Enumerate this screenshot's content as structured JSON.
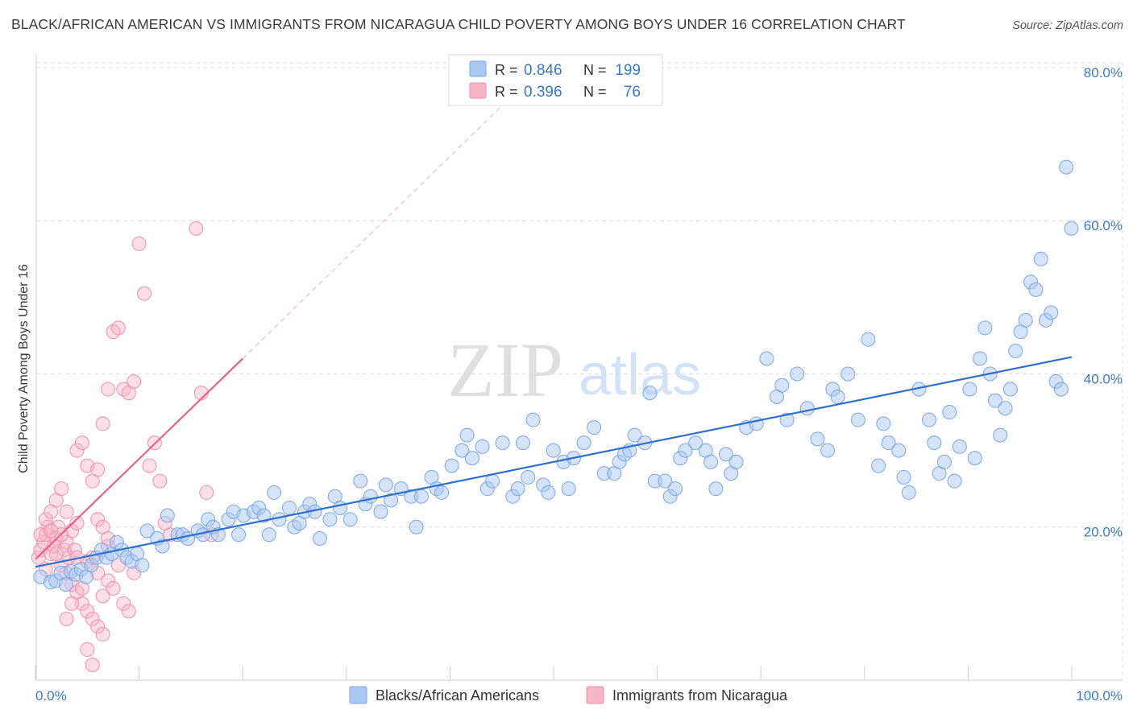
{
  "title": "BLACK/AFRICAN AMERICAN VS IMMIGRANTS FROM NICARAGUA CHILD POVERTY AMONG BOYS UNDER 16 CORRELATION CHART",
  "source": "Source: ZipAtlas.com",
  "watermark": {
    "zip": "ZIP",
    "atlas": "atlas"
  },
  "colors": {
    "blue_fill": "#a9c8f0",
    "blue_stroke": "#7aa7e0",
    "blue_line": "#2f6fcf",
    "pink_fill": "#f7b5c8",
    "pink_stroke": "#ef8fae",
    "pink_line": "#e8608e",
    "grid": "#dddddd",
    "tick_text": "#3a78c9"
  },
  "legend": {
    "rows": [
      {
        "r_label": "R =",
        "r_value": "0.846",
        "n_label": "N =",
        "n_value": "199"
      },
      {
        "r_label": "R =",
        "r_value": "0.396",
        "n_label": "N =",
        "n_value": "76"
      }
    ]
  },
  "chart_data": {
    "type": "scatter",
    "title": "BLACK/AFRICAN AMERICAN VS IMMIGRANTS FROM NICARAGUA CHILD POVERTY AMONG BOYS UNDER 16 CORRELATION CHART",
    "xlabel": "",
    "ylabel": "Child Poverty Among Boys Under 16",
    "xlim": [
      0,
      100
    ],
    "ylim": [
      0,
      80
    ],
    "y_ticks": [
      20,
      40,
      60,
      80
    ],
    "y_tick_labels": [
      "20.0%",
      "40.0%",
      "60.0%",
      "80.0%"
    ],
    "x_tick_labels": [
      "0.0%",
      "100.0%"
    ],
    "legend_position": "bottom-center",
    "series": [
      {
        "name": "Blacks/African Americans",
        "color": "#a9c8f0",
        "R": 0.846,
        "N": 199,
        "trend": {
          "x": [
            0,
            100
          ],
          "y": [
            14.8,
            42.2
          ]
        },
        "points": [
          [
            0.5,
            13.5
          ],
          [
            1.5,
            12.8
          ],
          [
            2,
            13
          ],
          [
            2.5,
            14
          ],
          [
            3,
            12.5
          ],
          [
            3.5,
            14.2
          ],
          [
            4,
            13.8
          ],
          [
            4.5,
            14.5
          ],
          [
            5,
            13.5
          ],
          [
            5.5,
            15
          ],
          [
            6,
            16
          ],
          [
            6.5,
            17
          ],
          [
            7,
            16
          ],
          [
            7.5,
            16.5
          ],
          [
            8,
            18
          ],
          [
            8.5,
            17
          ],
          [
            9,
            16
          ],
          [
            9.5,
            15.5
          ],
          [
            10,
            16.5
          ],
          [
            10.5,
            15
          ],
          [
            11,
            19.5
          ],
          [
            12,
            18.5
          ],
          [
            12.5,
            17.5
          ],
          [
            13,
            21.5
          ],
          [
            14,
            19
          ],
          [
            14.5,
            19
          ],
          [
            15,
            18.5
          ],
          [
            16,
            19.5
          ],
          [
            16.5,
            19
          ],
          [
            17,
            21
          ],
          [
            17.5,
            20
          ],
          [
            18,
            19
          ],
          [
            19,
            21
          ],
          [
            19.5,
            22
          ],
          [
            20,
            19
          ],
          [
            20.5,
            21.5
          ],
          [
            21.5,
            22
          ],
          [
            22,
            22.5
          ],
          [
            22.5,
            21.5
          ],
          [
            23,
            19
          ],
          [
            23.5,
            24.5
          ],
          [
            24,
            21
          ],
          [
            25,
            22.5
          ],
          [
            25.5,
            20
          ],
          [
            26,
            20.5
          ],
          [
            26.5,
            22
          ],
          [
            27,
            23
          ],
          [
            27.5,
            22
          ],
          [
            28,
            18.5
          ],
          [
            29,
            21
          ],
          [
            29.5,
            24
          ],
          [
            30,
            22.5
          ],
          [
            31,
            21
          ],
          [
            32,
            26
          ],
          [
            32.5,
            23
          ],
          [
            33,
            24
          ],
          [
            34,
            22
          ],
          [
            34.5,
            25.5
          ],
          [
            35,
            23.5
          ],
          [
            36,
            25
          ],
          [
            37,
            24
          ],
          [
            37.5,
            20
          ],
          [
            38,
            24
          ],
          [
            39,
            26.5
          ],
          [
            39.5,
            25
          ],
          [
            40,
            24.5
          ],
          [
            41,
            28
          ],
          [
            42,
            30
          ],
          [
            42.5,
            32
          ],
          [
            43,
            29
          ],
          [
            44,
            30.5
          ],
          [
            44.5,
            25
          ],
          [
            45,
            26
          ],
          [
            46,
            31
          ],
          [
            47,
            24
          ],
          [
            47.5,
            25
          ],
          [
            48,
            31
          ],
          [
            48.5,
            26.5
          ],
          [
            49,
            34
          ],
          [
            50,
            25.5
          ],
          [
            50.5,
            24.5
          ],
          [
            51,
            30
          ],
          [
            52,
            28.5
          ],
          [
            52.5,
            25
          ],
          [
            53,
            29
          ],
          [
            54,
            31
          ],
          [
            55,
            33
          ],
          [
            56,
            27
          ],
          [
            57,
            27
          ],
          [
            57.5,
            28.5
          ],
          [
            58,
            29.5
          ],
          [
            58.5,
            30
          ],
          [
            59,
            32
          ],
          [
            60,
            31
          ],
          [
            60.5,
            37.5
          ],
          [
            61,
            26
          ],
          [
            62,
            26
          ],
          [
            62.5,
            24
          ],
          [
            63,
            25
          ],
          [
            63.5,
            29
          ],
          [
            64,
            30
          ],
          [
            65,
            31
          ],
          [
            66,
            30
          ],
          [
            66.5,
            28.5
          ],
          [
            67,
            25
          ],
          [
            68,
            29.5
          ],
          [
            68.5,
            27
          ],
          [
            69,
            28.5
          ],
          [
            70,
            33
          ],
          [
            71,
            33.5
          ],
          [
            72,
            42
          ],
          [
            73,
            37
          ],
          [
            73.5,
            38.5
          ],
          [
            74,
            34
          ],
          [
            75,
            40
          ],
          [
            76,
            35.5
          ],
          [
            77,
            31.5
          ],
          [
            78,
            30
          ],
          [
            78.5,
            38
          ],
          [
            79,
            37
          ],
          [
            80,
            40
          ],
          [
            81,
            34
          ],
          [
            82,
            44.5
          ],
          [
            83,
            28
          ],
          [
            83.5,
            33.5
          ],
          [
            84,
            31
          ],
          [
            85,
            30
          ],
          [
            85.5,
            26.5
          ],
          [
            86,
            24.5
          ],
          [
            87,
            38
          ],
          [
            88,
            34
          ],
          [
            88.5,
            31
          ],
          [
            89,
            27
          ],
          [
            89.5,
            28.5
          ],
          [
            90,
            35
          ],
          [
            90.5,
            26
          ],
          [
            91,
            30.5
          ],
          [
            92,
            38
          ],
          [
            92.5,
            29
          ],
          [
            93,
            42
          ],
          [
            93.5,
            46
          ],
          [
            94,
            40
          ],
          [
            94.5,
            36.5
          ],
          [
            95,
            32
          ],
          [
            95.5,
            35.5
          ],
          [
            96,
            38
          ],
          [
            96.5,
            43
          ],
          [
            97,
            45.5
          ],
          [
            97.5,
            47
          ],
          [
            98,
            52
          ],
          [
            98.5,
            51
          ],
          [
            99,
            55
          ],
          [
            99.5,
            47
          ],
          [
            100,
            48
          ],
          [
            100.5,
            39
          ],
          [
            101,
            38
          ],
          [
            101.5,
            67
          ],
          [
            102,
            59
          ]
        ]
      },
      {
        "name": "Immigrants from Nicaragua",
        "color": "#f7b5c8",
        "R": 0.396,
        "N": 76,
        "trend": {
          "x": [
            0,
            20
          ],
          "y": [
            15.8,
            42
          ]
        },
        "trend_dashed": {
          "x": [
            20,
            45
          ],
          "y": [
            42,
            75
          ]
        },
        "points": [
          [
            0.3,
            16
          ],
          [
            0.5,
            17
          ],
          [
            0.8,
            18
          ],
          [
            1,
            19
          ],
          [
            1.2,
            20
          ],
          [
            1.5,
            16.5
          ],
          [
            1.8,
            17.5
          ],
          [
            2,
            18.5
          ],
          [
            2.2,
            20
          ],
          [
            2.5,
            15
          ],
          [
            2.8,
            17
          ],
          [
            3,
            18
          ],
          [
            3.2,
            16
          ],
          [
            3.5,
            19.5
          ],
          [
            3.8,
            17
          ],
          [
            4,
            16
          ],
          [
            1,
            21
          ],
          [
            1.5,
            22
          ],
          [
            2,
            23.5
          ],
          [
            2.5,
            25
          ],
          [
            0.5,
            19
          ],
          [
            3,
            14
          ],
          [
            3.5,
            12.5
          ],
          [
            4,
            11.5
          ],
          [
            4.5,
            10
          ],
          [
            5,
            9
          ],
          [
            5.5,
            8
          ],
          [
            6,
            7
          ],
          [
            6.5,
            6
          ],
          [
            7,
            13
          ],
          [
            5,
            15.5
          ],
          [
            5.5,
            16
          ],
          [
            6,
            14
          ],
          [
            6.5,
            11
          ],
          [
            7,
            17.5
          ],
          [
            7.5,
            12
          ],
          [
            8,
            15
          ],
          [
            8.5,
            10
          ],
          [
            9,
            9
          ],
          [
            9.5,
            14
          ],
          [
            4,
            30
          ],
          [
            4.5,
            31
          ],
          [
            5,
            28
          ],
          [
            5.5,
            26
          ],
          [
            6,
            27.5
          ],
          [
            6.5,
            33.5
          ],
          [
            7,
            38
          ],
          [
            7.5,
            45.5
          ],
          [
            8,
            46
          ],
          [
            8.5,
            38
          ],
          [
            9,
            37.5
          ],
          [
            9.5,
            39
          ],
          [
            10,
            57
          ],
          [
            10.5,
            50.5
          ],
          [
            11,
            28
          ],
          [
            11.5,
            31
          ],
          [
            12,
            26
          ],
          [
            12.5,
            20.5
          ],
          [
            13,
            19
          ],
          [
            15.5,
            59
          ],
          [
            16,
            37.5
          ],
          [
            16.5,
            24.5
          ],
          [
            17,
            19
          ],
          [
            5,
            4
          ],
          [
            5.5,
            2
          ],
          [
            6,
            21
          ],
          [
            6.5,
            20
          ],
          [
            7,
            18.5
          ],
          [
            3,
            8
          ],
          [
            3.5,
            10
          ],
          [
            4.5,
            12
          ],
          [
            1,
            14.5
          ],
          [
            2,
            16.5
          ],
          [
            2.5,
            19
          ],
          [
            1.5,
            19.5
          ],
          [
            4,
            20.5
          ],
          [
            3,
            22
          ]
        ]
      }
    ]
  },
  "bottom_legend": [
    {
      "label": "Blacks/African Americans"
    },
    {
      "label": "Immigrants from Nicaragua"
    }
  ]
}
